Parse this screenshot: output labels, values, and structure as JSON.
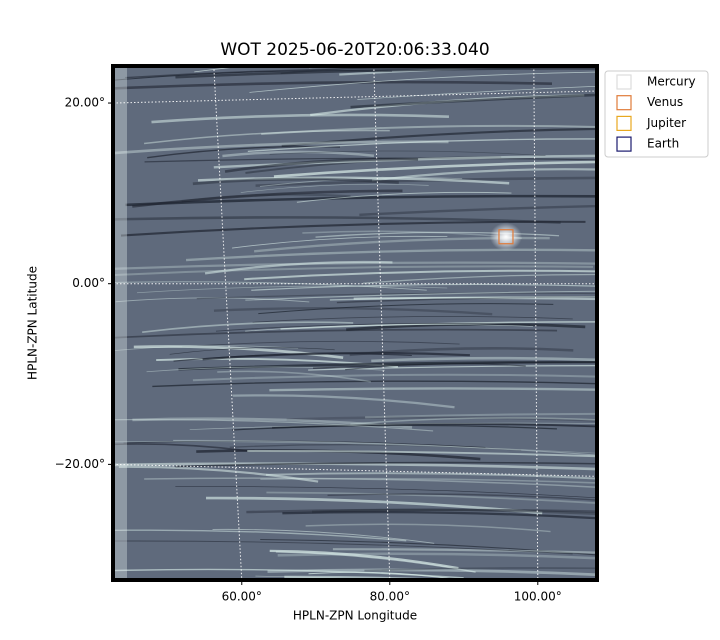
{
  "chart_data": {
    "type": "image",
    "title": "WOT 2025-06-20T20:06:33.040",
    "xlabel": "HPLN-ZPN Longitude",
    "ylabel": "HPLN-ZPN Latitude",
    "xlim": [
      42.6,
      108.0
    ],
    "ylim": [
      -32.8,
      24.1
    ],
    "xticks": [
      {
        "value": 60,
        "label": "60.00°"
      },
      {
        "value": 80,
        "label": "80.00°"
      },
      {
        "value": 100,
        "label": "100.00°"
      }
    ],
    "yticks": [
      {
        "value": 20,
        "label": "20.00°"
      },
      {
        "value": 0,
        "label": "0.00°"
      },
      {
        "value": -20,
        "label": "−20.00°"
      }
    ],
    "grid": true,
    "legend": "upper right",
    "series": [
      {
        "name": "Mercury",
        "color": "#dddddd",
        "x": [],
        "y": []
      },
      {
        "name": "Venus",
        "color": "#e07b39",
        "x": [
          95.7
        ],
        "y": [
          5.2
        ]
      },
      {
        "name": "Jupiter",
        "color": "#e8a820",
        "x": [],
        "y": []
      },
      {
        "name": "Earth",
        "color": "#1a1a6e",
        "x": [],
        "y": []
      }
    ]
  }
}
